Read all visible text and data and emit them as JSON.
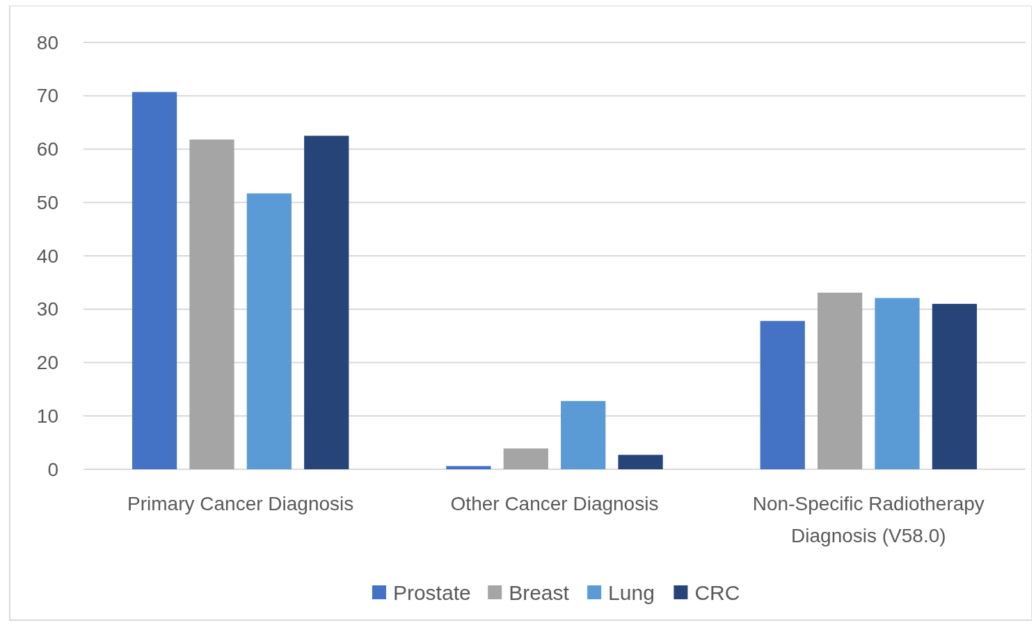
{
  "chart_data": {
    "type": "bar",
    "categories": [
      "Primary Cancer Diagnosis",
      "Other Cancer Diagnosis",
      "Non-Specific Radiotherapy Diagnosis (V58.0)"
    ],
    "series": [
      {
        "name": "Prostate",
        "color": "#4472c4",
        "values": [
          70.7,
          0.6,
          27.8
        ]
      },
      {
        "name": "Breast",
        "color": "#a5a5a5",
        "values": [
          61.8,
          3.9,
          33.1
        ]
      },
      {
        "name": "Lung",
        "color": "#5b9bd5",
        "values": [
          51.7,
          12.8,
          32.1
        ]
      },
      {
        "name": "CRC",
        "color": "#264478",
        "values": [
          62.5,
          2.7,
          31
        ]
      }
    ],
    "ylim": [
      0,
      80
    ],
    "yticks": [
      0,
      10,
      20,
      30,
      40,
      50,
      60,
      70,
      80
    ],
    "grid": "y",
    "legend": "bottom"
  }
}
